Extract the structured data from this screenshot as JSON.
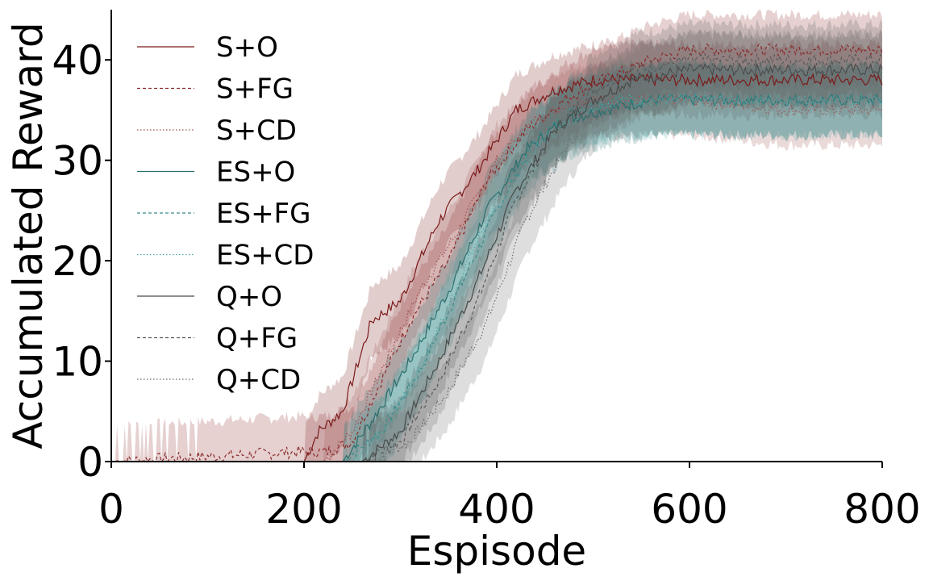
{
  "chart_data": {
    "type": "line",
    "xlabel": "Espisode",
    "ylabel": "Accumulated Reward",
    "xlim": [
      0,
      800
    ],
    "ylim": [
      0,
      45
    ],
    "xticks": [
      "0",
      "200",
      "400",
      "600",
      "800"
    ],
    "yticks": [
      "0",
      "10",
      "20",
      "30",
      "40"
    ],
    "grid": false,
    "legend_position": "top-left",
    "shaded_band": "variability band around each mean curve",
    "series": [
      {
        "name": "S+O",
        "color": "#7b1a1a",
        "dash": "solid",
        "x": [
          0,
          200,
          215,
          240,
          270,
          300,
          340,
          380,
          420,
          460,
          500,
          550,
          600,
          700,
          800
        ],
        "y": [
          0,
          0,
          3,
          5,
          14,
          16,
          24,
          29,
          35,
          37,
          38,
          38,
          38,
          38,
          38
        ]
      },
      {
        "name": "S+FG",
        "color": "#8b2b2b",
        "dash": "dashed",
        "x": [
          0,
          200,
          225,
          250,
          280,
          310,
          350,
          390,
          430,
          470,
          510,
          560,
          600,
          700,
          800
        ],
        "y": [
          0,
          1,
          1,
          2,
          8,
          14,
          20,
          28,
          33,
          36,
          38,
          40,
          41,
          41,
          41
        ]
      },
      {
        "name": "S+CD",
        "color": "#a05050",
        "dash": "dotted",
        "x": [
          0,
          220,
          250,
          280,
          320,
          360,
          400,
          440,
          480,
          520,
          600,
          700,
          800
        ],
        "y": [
          0,
          0,
          3,
          9,
          17,
          23,
          30,
          34,
          36,
          36,
          36,
          35,
          35
        ]
      },
      {
        "name": "ES+O",
        "color": "#2a6f6f",
        "dash": "solid",
        "x": [
          0,
          240,
          270,
          310,
          350,
          390,
          430,
          470,
          510,
          560,
          600,
          700,
          800
        ],
        "y": [
          0,
          0,
          4,
          10,
          17,
          25,
          31,
          34,
          35,
          36,
          36,
          36,
          36
        ]
      },
      {
        "name": "ES+FG",
        "color": "#3b8c8c",
        "dash": "dashed",
        "x": [
          0,
          240,
          280,
          320,
          360,
          400,
          440,
          480,
          520,
          560,
          600,
          700,
          800
        ],
        "y": [
          0,
          0,
          3,
          9,
          17,
          25,
          32,
          35,
          36,
          36,
          36,
          36,
          36
        ]
      },
      {
        "name": "ES+CD",
        "color": "#4fa6a6",
        "dash": "dotted",
        "x": [
          0,
          250,
          290,
          330,
          370,
          410,
          450,
          490,
          530,
          600,
          700,
          800
        ],
        "y": [
          0,
          0,
          4,
          11,
          20,
          28,
          32,
          35,
          36,
          36,
          36,
          36
        ]
      },
      {
        "name": "Q+O",
        "color": "#4a4a4a",
        "dash": "solid",
        "x": [
          0,
          260,
          300,
          340,
          380,
          420,
          460,
          500,
          540,
          600,
          700,
          800
        ],
        "y": [
          0,
          0,
          3,
          10,
          18,
          27,
          33,
          36,
          38,
          39,
          39,
          39
        ]
      },
      {
        "name": "Q+FG",
        "color": "#5a5a5a",
        "dash": "dashed",
        "x": [
          0,
          260,
          300,
          340,
          380,
          420,
          460,
          500,
          540,
          600,
          700,
          800
        ],
        "y": [
          0,
          0,
          2,
          8,
          16,
          26,
          33,
          37,
          39,
          40,
          40,
          40
        ]
      },
      {
        "name": "Q+CD",
        "color": "#6a6a6a",
        "dash": "dotted",
        "x": [
          0,
          270,
          310,
          350,
          390,
          430,
          470,
          510,
          550,
          600,
          700,
          800
        ],
        "y": [
          0,
          0,
          2,
          7,
          14,
          24,
          31,
          36,
          38,
          39,
          39,
          39
        ]
      }
    ]
  }
}
